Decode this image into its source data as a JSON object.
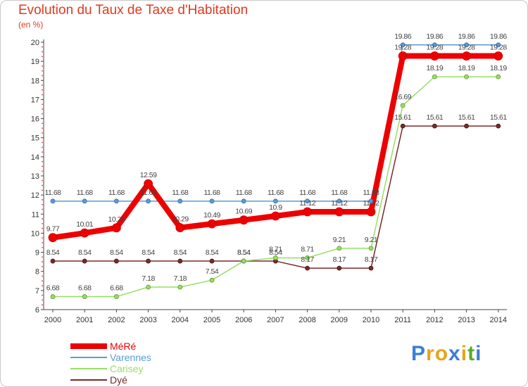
{
  "header": {
    "title": "Evolution du Taux de Taxe d'Habitation",
    "unit": "(en %)"
  },
  "brand": {
    "letters": [
      "P",
      "r",
      "o",
      "x",
      "i",
      "t",
      "i"
    ],
    "colors": [
      "#3a7fd5",
      "#e8a21c",
      "#e8a21c",
      "#3a7fd5",
      "#e8a21c",
      "#5aaa2a",
      "#3a7fd5"
    ]
  },
  "chart_data": {
    "type": "line",
    "title": "Evolution du Taux de Taxe d'Habitation",
    "ylabel": "(en %)",
    "x": [
      "2000",
      "2001",
      "2002",
      "2003",
      "2004",
      "2005",
      "2006",
      "2007",
      "2008",
      "2009",
      "2010",
      "2011",
      "2012",
      "2013",
      "2014"
    ],
    "ylim": [
      6,
      20
    ],
    "yticks": [
      "6",
      "7",
      "8",
      "9",
      "10",
      "11",
      "12",
      "13",
      "14",
      "15",
      "16",
      "17",
      "18",
      "19",
      "20"
    ],
    "grid": false,
    "legend_position": "bottom-left",
    "series": [
      {
        "name": "MéRé",
        "color": "#ee0000",
        "values": [
          9.77,
          10.01,
          10.28,
          12.59,
          10.29,
          10.49,
          10.69,
          10.9,
          11.12,
          11.12,
          11.12,
          19.28,
          19.28,
          19.28,
          19.28
        ],
        "labels": [
          "9.77",
          "10.01",
          "10.28",
          "12.59",
          "10.29",
          "10.49",
          "10.69",
          "10.9",
          "11.12",
          "11.12",
          "11.12",
          "19.28",
          "19.28",
          "19.28",
          "19.28"
        ]
      },
      {
        "name": "Varennes",
        "color": "#5b9bd5",
        "values": [
          11.68,
          11.68,
          11.68,
          11.68,
          11.68,
          11.68,
          11.68,
          11.68,
          11.68,
          11.68,
          11.68,
          19.86,
          19.86,
          19.86,
          19.86
        ],
        "labels": [
          "11.68",
          "11.68",
          "11.68",
          "11.68",
          "11.68",
          "11.68",
          "11.68",
          "11.68",
          "11.68",
          "11.68",
          "11.68",
          "19.86",
          "19.86",
          "19.86",
          "19.86"
        ]
      },
      {
        "name": "Carisey",
        "color": "#99dd66",
        "values": [
          6.68,
          6.68,
          6.68,
          7.18,
          7.18,
          7.54,
          8.54,
          8.71,
          8.71,
          9.21,
          9.21,
          16.69,
          18.19,
          18.19,
          18.19
        ],
        "labels": [
          "6.68",
          "6.68",
          "6.68",
          "7.18",
          "7.18",
          "7.54",
          "8.54",
          "8.71",
          "8.71",
          "9.21",
          "9.21",
          "16.69",
          "18.19",
          "18.19",
          "18.19"
        ]
      },
      {
        "name": "Dyé",
        "color": "#7a2a2a",
        "values": [
          8.54,
          8.54,
          8.54,
          8.54,
          8.54,
          8.54,
          8.54,
          8.54,
          8.17,
          8.17,
          8.17,
          15.61,
          15.61,
          15.61,
          15.61
        ],
        "labels": [
          "8.54",
          "8.54",
          "8.54",
          "8.54",
          "8.54",
          "8.54",
          "8.54",
          "8.54",
          "8.17",
          "8.17",
          "8.17",
          "15.61",
          "15.61",
          "15.61",
          "15.61"
        ]
      }
    ]
  }
}
